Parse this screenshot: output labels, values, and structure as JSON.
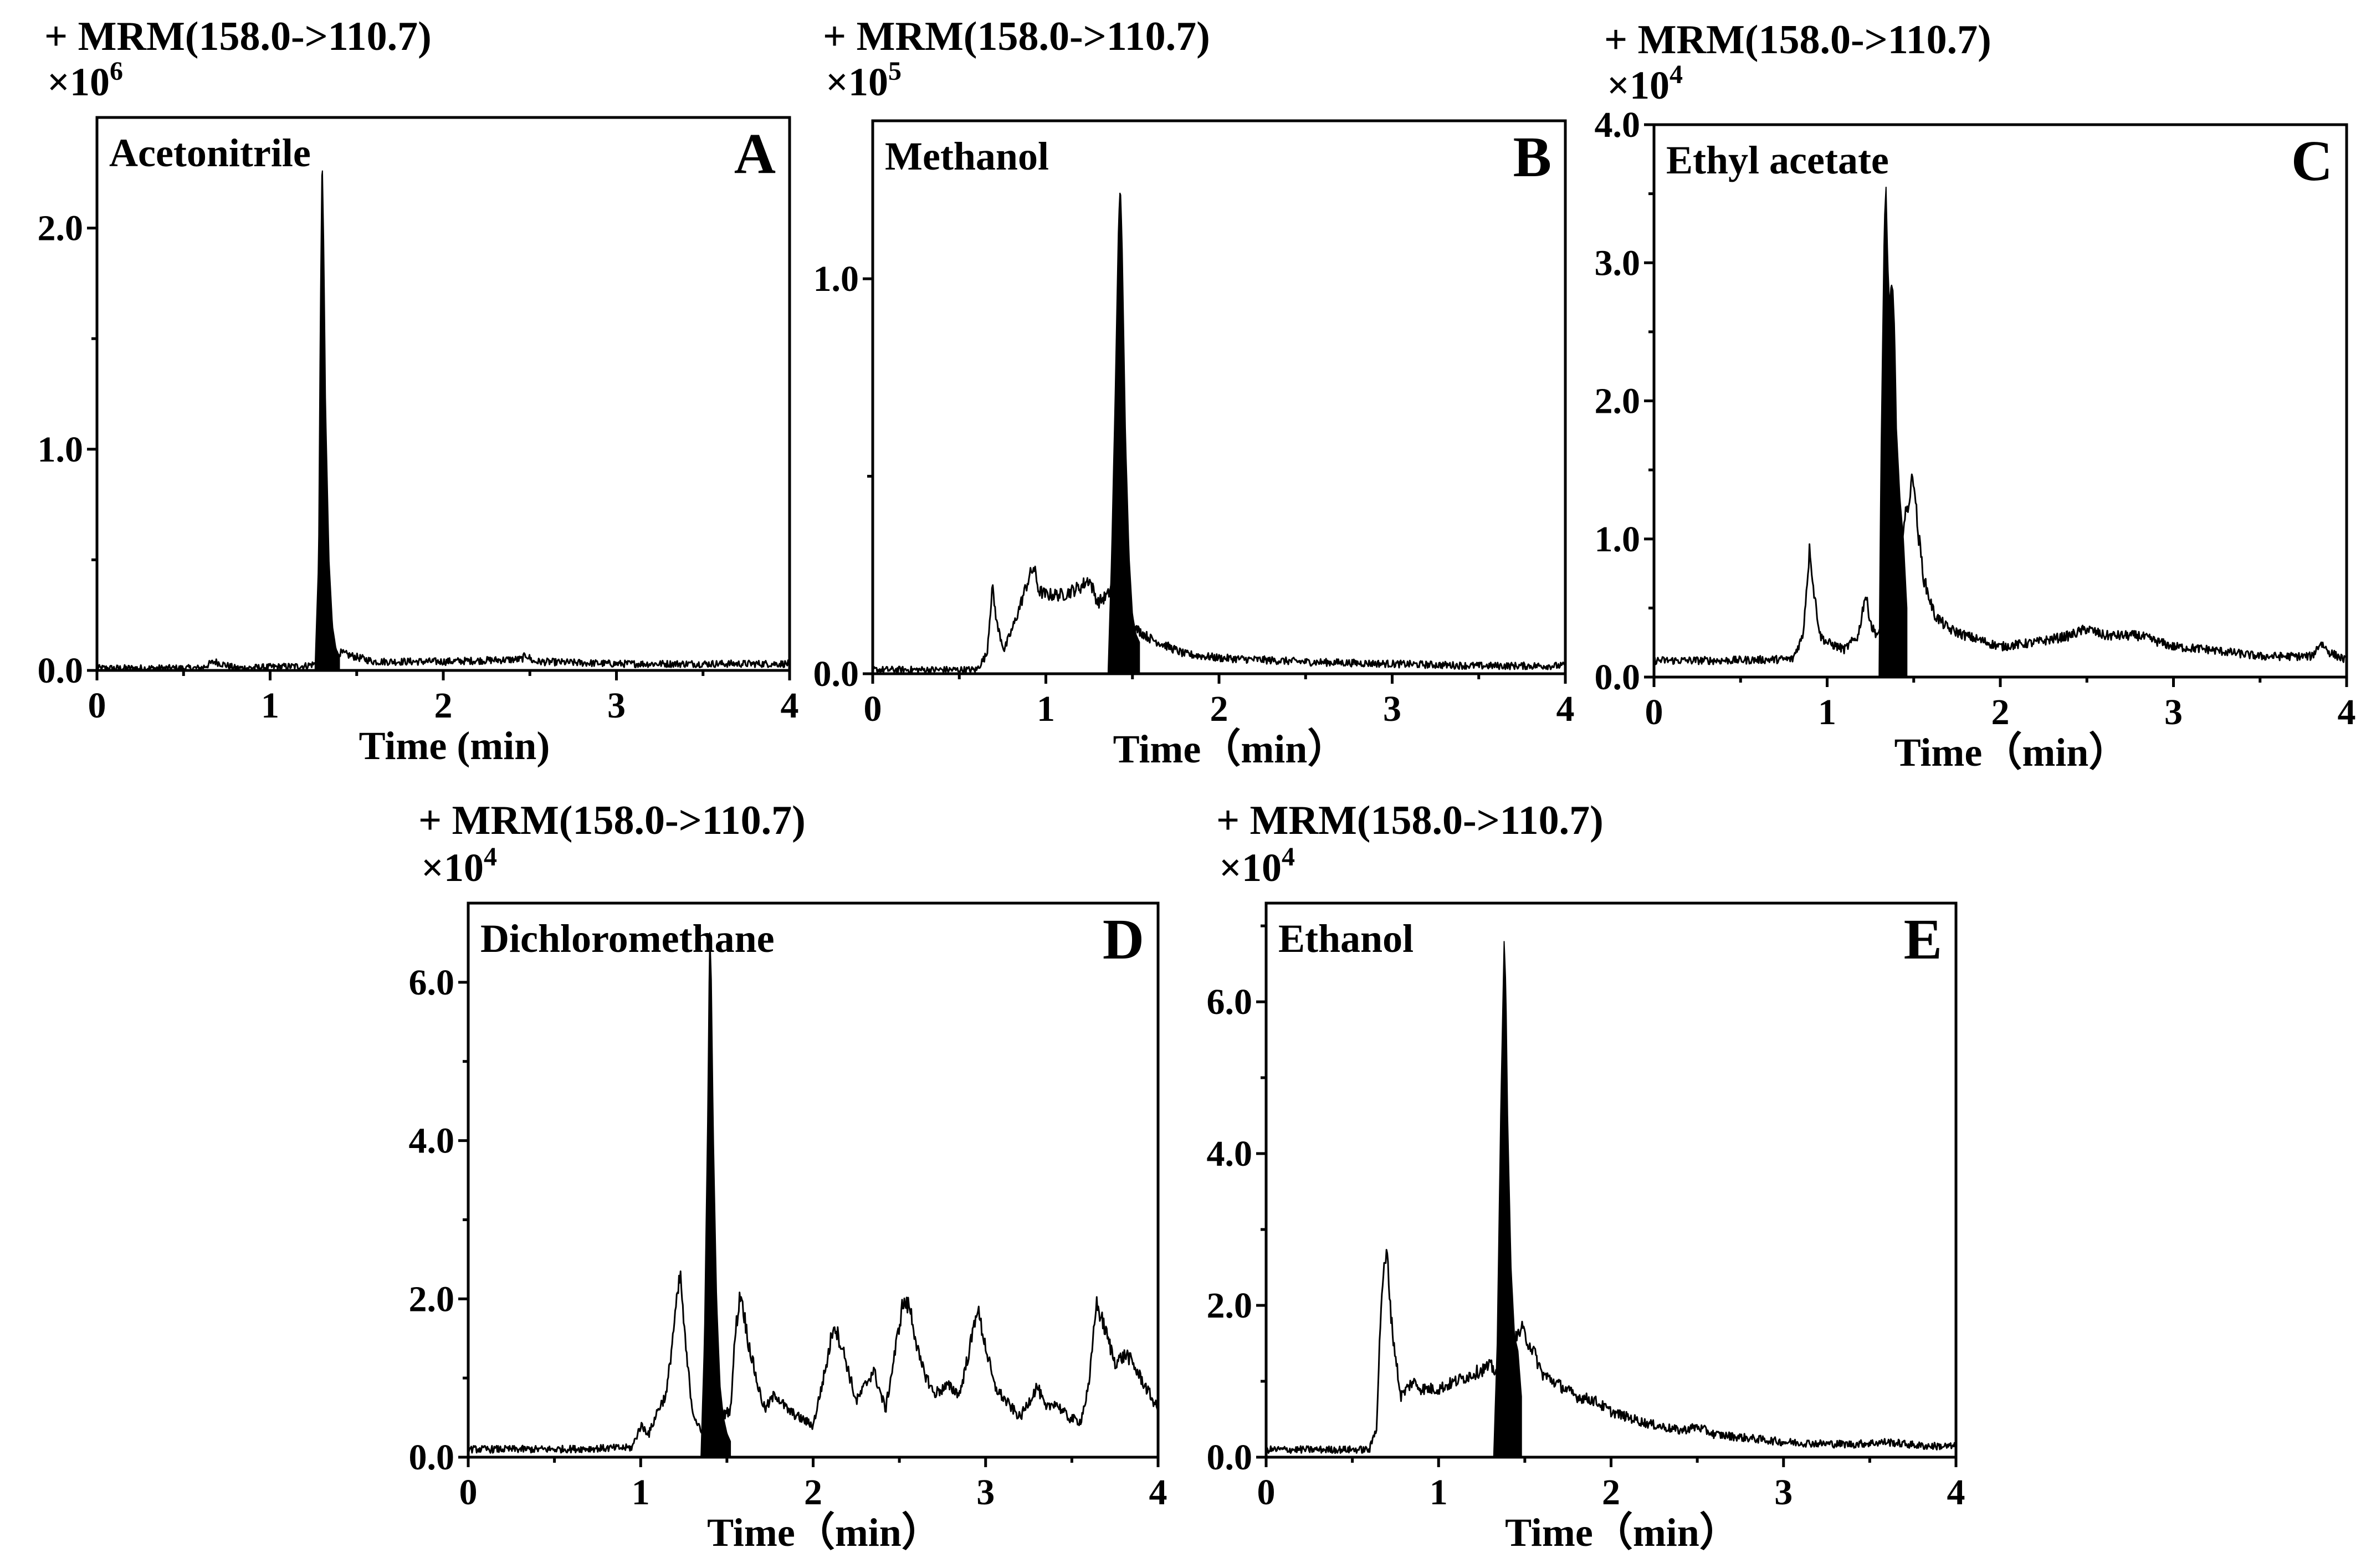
{
  "chart_data": [
    {
      "type": "line",
      "panel": "A",
      "title": "+ MRM(158.0->110.7)",
      "scale": "×10",
      "scale_exp": "6",
      "solvent": "Acetonitrile",
      "xlabel": "Time (min)",
      "xlim": [
        0,
        4
      ],
      "ylim": [
        0,
        2.5
      ],
      "xticks": [
        0,
        1,
        2,
        3,
        4
      ],
      "yticks": [
        0.0,
        1.0,
        2.0
      ],
      "xtick_labels": [
        "0",
        "1",
        "2",
        "3",
        "4"
      ],
      "ytick_labels": [
        "0.0",
        "1.0",
        "2.0"
      ],
      "series": [
        {
          "name": "baseline",
          "x": [
            0,
            0.6,
            0.68,
            0.72,
            0.8,
            1.0,
            1.2,
            1.26,
            1.3,
            1.4,
            1.6,
            2.0,
            2.45,
            2.48,
            2.52,
            3.0,
            3.5,
            4.0
          ],
          "y": [
            0.01,
            0.01,
            0.04,
            0.03,
            0.01,
            0.015,
            0.02,
            0.03,
            0.03,
            0.08,
            0.04,
            0.04,
            0.05,
            0.07,
            0.04,
            0.03,
            0.03,
            0.03
          ]
        },
        {
          "name": "filled peak",
          "x": [
            1.26,
            1.28,
            1.29,
            1.3,
            1.31,
            1.32,
            1.34,
            1.36,
            1.38,
            1.4
          ],
          "y": [
            0.02,
            0.5,
            1.6,
            2.35,
            1.9,
            1.2,
            0.5,
            0.2,
            0.1,
            0.06
          ]
        }
      ]
    },
    {
      "type": "line",
      "panel": "B",
      "title": "+ MRM(158.0->110.7)",
      "scale": "×10",
      "scale_exp": "5",
      "solvent": "Methanol",
      "xlabel": "Time（min）",
      "xlim": [
        0,
        4
      ],
      "ylim": [
        0,
        1.4
      ],
      "xticks": [
        0,
        1,
        2,
        3,
        4
      ],
      "yticks": [
        0.0,
        1.0
      ],
      "xtick_labels": [
        "0",
        "1",
        "2",
        "3",
        "4"
      ],
      "ytick_labels": [
        "0.0",
        "1.0"
      ],
      "series": [
        {
          "name": "baseline",
          "x": [
            0,
            0.3,
            0.6,
            0.66,
            0.69,
            0.72,
            0.76,
            0.82,
            0.9,
            0.93,
            0.96,
            1.0,
            1.1,
            1.2,
            1.25,
            1.3,
            1.36,
            1.4,
            1.5,
            1.6,
            1.8,
            2.0,
            2.5,
            3.0,
            3.5,
            4.0
          ],
          "y": [
            0.01,
            0.01,
            0.01,
            0.05,
            0.22,
            0.12,
            0.06,
            0.13,
            0.24,
            0.27,
            0.21,
            0.2,
            0.2,
            0.22,
            0.24,
            0.18,
            0.2,
            0.25,
            0.12,
            0.09,
            0.05,
            0.04,
            0.03,
            0.025,
            0.02,
            0.02
          ]
        },
        {
          "name": "filled peak",
          "x": [
            1.36,
            1.38,
            1.4,
            1.42,
            1.43,
            1.44,
            1.46,
            1.48,
            1.5,
            1.52,
            1.54
          ],
          "y": [
            0.01,
            0.3,
            0.7,
            1.15,
            1.24,
            1.1,
            0.6,
            0.3,
            0.15,
            0.1,
            0.08
          ]
        }
      ]
    },
    {
      "type": "line",
      "panel": "C",
      "title": "+ MRM(158.0->110.7)",
      "scale": "×10",
      "scale_exp": "4",
      "solvent": "Ethyl acetate",
      "xlabel": "Time（min）",
      "xlim": [
        0,
        4
      ],
      "ylim": [
        0,
        4.0
      ],
      "xticks": [
        0,
        1,
        2,
        3,
        4
      ],
      "yticks": [
        0.0,
        1.0,
        2.0,
        3.0,
        4.0
      ],
      "xtick_labels": [
        "0",
        "1",
        "2",
        "3",
        "4"
      ],
      "ytick_labels": [
        "0.0",
        "1.0",
        "2.0",
        "3.0",
        "4.0"
      ],
      "series": [
        {
          "name": "baseline",
          "x": [
            0,
            0.4,
            0.8,
            0.86,
            0.9,
            0.92,
            0.96,
            1.0,
            1.1,
            1.18,
            1.22,
            1.26,
            1.3,
            1.46,
            1.5,
            1.52,
            1.56,
            1.62,
            1.7,
            1.8,
            2.0,
            2.2,
            2.4,
            2.5,
            2.6,
            2.8,
            3.0,
            3.2,
            3.5,
            3.8,
            3.85,
            3.9,
            4.0
          ],
          "y": [
            0.12,
            0.12,
            0.13,
            0.3,
            0.95,
            0.65,
            0.3,
            0.25,
            0.2,
            0.3,
            0.6,
            0.35,
            0.3,
            1.2,
            1.48,
            1.1,
            0.7,
            0.45,
            0.35,
            0.3,
            0.22,
            0.25,
            0.3,
            0.35,
            0.3,
            0.3,
            0.22,
            0.2,
            0.15,
            0.15,
            0.25,
            0.18,
            0.12
          ]
        },
        {
          "name": "filled peak",
          "x": [
            1.3,
            1.31,
            1.33,
            1.34,
            1.35,
            1.36,
            1.37,
            1.38,
            1.39,
            1.4,
            1.42,
            1.44,
            1.46
          ],
          "y": [
            0.05,
            1.5,
            3.3,
            3.55,
            3.0,
            2.7,
            2.85,
            2.8,
            2.5,
            1.8,
            1.3,
            1.0,
            0.5
          ]
        }
      ]
    },
    {
      "type": "line",
      "panel": "D",
      "title": "+ MRM(158.0->110.7)",
      "scale": "×10",
      "scale_exp": "4",
      "solvent": "Dichloromethane",
      "xlabel": "Time（min）",
      "xlim": [
        0,
        4
      ],
      "ylim": [
        0,
        7.0
      ],
      "xticks": [
        0,
        1,
        2,
        3,
        4
      ],
      "yticks": [
        0.0,
        2.0,
        4.0,
        6.0
      ],
      "xtick_labels": [
        "0",
        "1",
        "2",
        "3",
        "4"
      ],
      "ytick_labels": [
        "0.0",
        "2.0",
        "4.0",
        "6.0"
      ],
      "series": [
        {
          "name": "baseline",
          "x": [
            0,
            0.5,
            0.95,
            1.0,
            1.05,
            1.1,
            1.15,
            1.2,
            1.23,
            1.26,
            1.3,
            1.35,
            1.52,
            1.55,
            1.58,
            1.62,
            1.68,
            1.72,
            1.78,
            1.85,
            1.92,
            2.0,
            2.08,
            2.12,
            2.18,
            2.25,
            2.3,
            2.35,
            2.42,
            2.48,
            2.52,
            2.56,
            2.62,
            2.7,
            2.78,
            2.85,
            2.92,
            2.95,
            3.0,
            3.05,
            3.12,
            3.2,
            3.3,
            3.35,
            3.4,
            3.48,
            3.55,
            3.6,
            3.64,
            3.68,
            3.75,
            3.82,
            3.9,
            3.95,
            4.0
          ],
          "y": [
            0.1,
            0.1,
            0.12,
            0.4,
            0.3,
            0.6,
            0.8,
            1.8,
            2.3,
            1.4,
            0.6,
            0.3,
            0.6,
            1.6,
            2.1,
            1.5,
            0.9,
            0.6,
            0.8,
            0.6,
            0.5,
            0.4,
            1.2,
            1.7,
            1.3,
            0.7,
            0.9,
            1.1,
            0.6,
            1.4,
            1.95,
            1.9,
            1.2,
            0.8,
            0.9,
            0.8,
            1.5,
            1.9,
            1.4,
            0.9,
            0.7,
            0.5,
            0.9,
            0.6,
            0.7,
            0.5,
            0.45,
            0.9,
            1.95,
            1.7,
            1.2,
            1.3,
            1.0,
            0.8,
            0.6
          ]
        },
        {
          "name": "filled peak",
          "x": [
            1.35,
            1.37,
            1.39,
            1.4,
            1.41,
            1.42,
            1.44,
            1.46,
            1.48,
            1.5,
            1.52
          ],
          "y": [
            0.02,
            1.5,
            4.5,
            6.7,
            6.0,
            4.2,
            2.0,
            0.9,
            0.5,
            0.3,
            0.2
          ]
        }
      ]
    },
    {
      "type": "line",
      "panel": "E",
      "title": "+ MRM(158.0->110.7)",
      "scale": "×10",
      "scale_exp": "4",
      "solvent": "Ethanol",
      "xlabel": "Time（min）",
      "xlim": [
        0,
        4
      ],
      "ylim": [
        0,
        7.3
      ],
      "xticks": [
        0,
        1,
        2,
        3,
        4
      ],
      "yticks": [
        0.0,
        2.0,
        4.0,
        6.0
      ],
      "xtick_labels": [
        "0",
        "1",
        "2",
        "3",
        "4"
      ],
      "ytick_labels": [
        "0.0",
        "2.0",
        "4.0",
        "6.0"
      ],
      "series": [
        {
          "name": "baseline",
          "x": [
            0,
            0.3,
            0.6,
            0.64,
            0.67,
            0.7,
            0.73,
            0.78,
            0.85,
            0.9,
            1.0,
            1.1,
            1.2,
            1.3,
            1.35,
            1.48,
            1.5,
            1.55,
            1.6,
            1.7,
            1.8,
            1.9,
            2.0,
            2.2,
            2.4,
            2.5,
            2.6,
            2.8,
            3.0,
            3.2,
            3.4,
            3.6,
            3.8,
            4.0
          ],
          "y": [
            0.1,
            0.1,
            0.1,
            0.4,
            2.2,
            2.7,
            1.7,
            0.8,
            1.0,
            0.9,
            0.9,
            1.0,
            1.1,
            1.2,
            1.1,
            1.7,
            1.6,
            1.4,
            1.1,
            0.95,
            0.8,
            0.75,
            0.6,
            0.45,
            0.35,
            0.4,
            0.3,
            0.25,
            0.2,
            0.18,
            0.17,
            0.2,
            0.15,
            0.14
          ]
        },
        {
          "name": "filled peak",
          "x": [
            1.32,
            1.34,
            1.36,
            1.38,
            1.39,
            1.4,
            1.42,
            1.44,
            1.46,
            1.48
          ],
          "y": [
            0.02,
            1.5,
            4.5,
            6.8,
            6.2,
            4.5,
            2.5,
            1.6,
            1.4,
            0.8
          ]
        }
      ]
    }
  ]
}
